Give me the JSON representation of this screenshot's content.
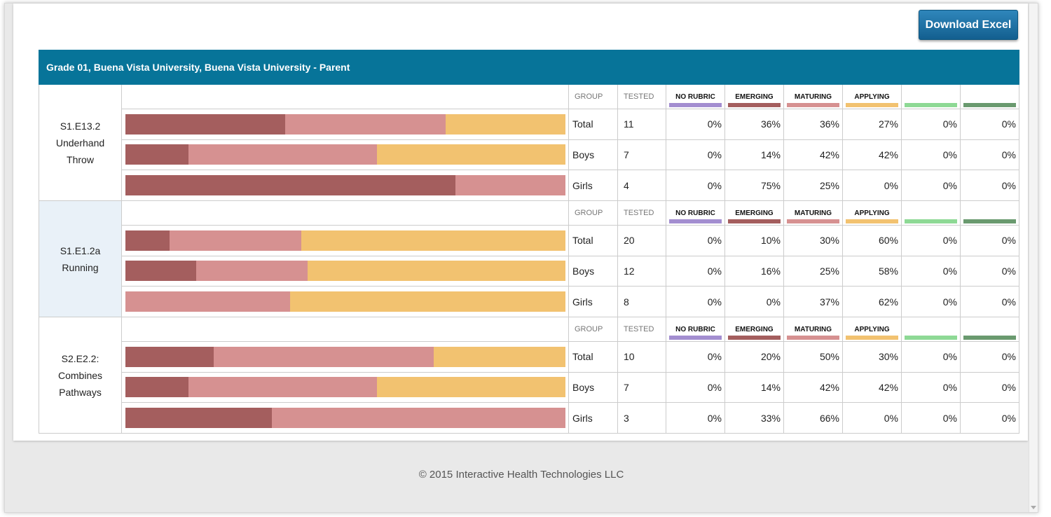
{
  "toolbar": {
    "download_label": "Download Excel"
  },
  "report": {
    "title": "Grade 01, Buena Vista University, Buena Vista University - Parent",
    "headers": {
      "group": "GROUP",
      "tested": "TESTED",
      "categories": [
        {
          "label": "NO RUBRIC",
          "color": "#a38ed0"
        },
        {
          "label": "EMERGING",
          "color": "#a45e5e"
        },
        {
          "label": "MATURING",
          "color": "#d69191"
        },
        {
          "label": "APPLYING",
          "color": "#f2c270"
        },
        {
          "label": "",
          "color": "#8ed995"
        },
        {
          "label": "",
          "color": "#6a9a6f"
        }
      ]
    },
    "sections": [
      {
        "skill": "S1.E13.2 Underhand Throw",
        "alt": false,
        "rows": [
          {
            "group": "Total",
            "tested": "11",
            "pcts": [
              "0%",
              "36%",
              "36%",
              "27%",
              "0%",
              "0%"
            ],
            "values": [
              0,
              36,
              36,
              27,
              0,
              0
            ]
          },
          {
            "group": "Boys",
            "tested": "7",
            "pcts": [
              "0%",
              "14%",
              "42%",
              "42%",
              "0%",
              "0%"
            ],
            "values": [
              0,
              14,
              42,
              42,
              0,
              0
            ]
          },
          {
            "group": "Girls",
            "tested": "4",
            "pcts": [
              "0%",
              "75%",
              "25%",
              "0%",
              "0%",
              "0%"
            ],
            "values": [
              0,
              75,
              25,
              0,
              0,
              0
            ]
          }
        ]
      },
      {
        "skill": "S1.E1.2a Running",
        "alt": true,
        "rows": [
          {
            "group": "Total",
            "tested": "20",
            "pcts": [
              "0%",
              "10%",
              "30%",
              "60%",
              "0%",
              "0%"
            ],
            "values": [
              0,
              10,
              30,
              60,
              0,
              0
            ]
          },
          {
            "group": "Boys",
            "tested": "12",
            "pcts": [
              "0%",
              "16%",
              "25%",
              "58%",
              "0%",
              "0%"
            ],
            "values": [
              0,
              16,
              25,
              58,
              0,
              0
            ]
          },
          {
            "group": "Girls",
            "tested": "8",
            "pcts": [
              "0%",
              "0%",
              "37%",
              "62%",
              "0%",
              "0%"
            ],
            "values": [
              0,
              0,
              37,
              62,
              0,
              0
            ]
          }
        ]
      },
      {
        "skill": "S2.E2.2: Combines Pathways",
        "alt": false,
        "rows": [
          {
            "group": "Total",
            "tested": "10",
            "pcts": [
              "0%",
              "20%",
              "50%",
              "30%",
              "0%",
              "0%"
            ],
            "values": [
              0,
              20,
              50,
              30,
              0,
              0
            ]
          },
          {
            "group": "Boys",
            "tested": "7",
            "pcts": [
              "0%",
              "14%",
              "42%",
              "42%",
              "0%",
              "0%"
            ],
            "values": [
              0,
              14,
              42,
              42,
              0,
              0
            ]
          },
          {
            "group": "Girls",
            "tested": "3",
            "pcts": [
              "0%",
              "33%",
              "66%",
              "0%",
              "0%",
              "0%"
            ],
            "values": [
              0,
              33,
              66,
              0,
              0,
              0
            ]
          }
        ]
      }
    ]
  },
  "footer": {
    "copyright": "© 2015 Interactive Health Technologies LLC"
  }
}
